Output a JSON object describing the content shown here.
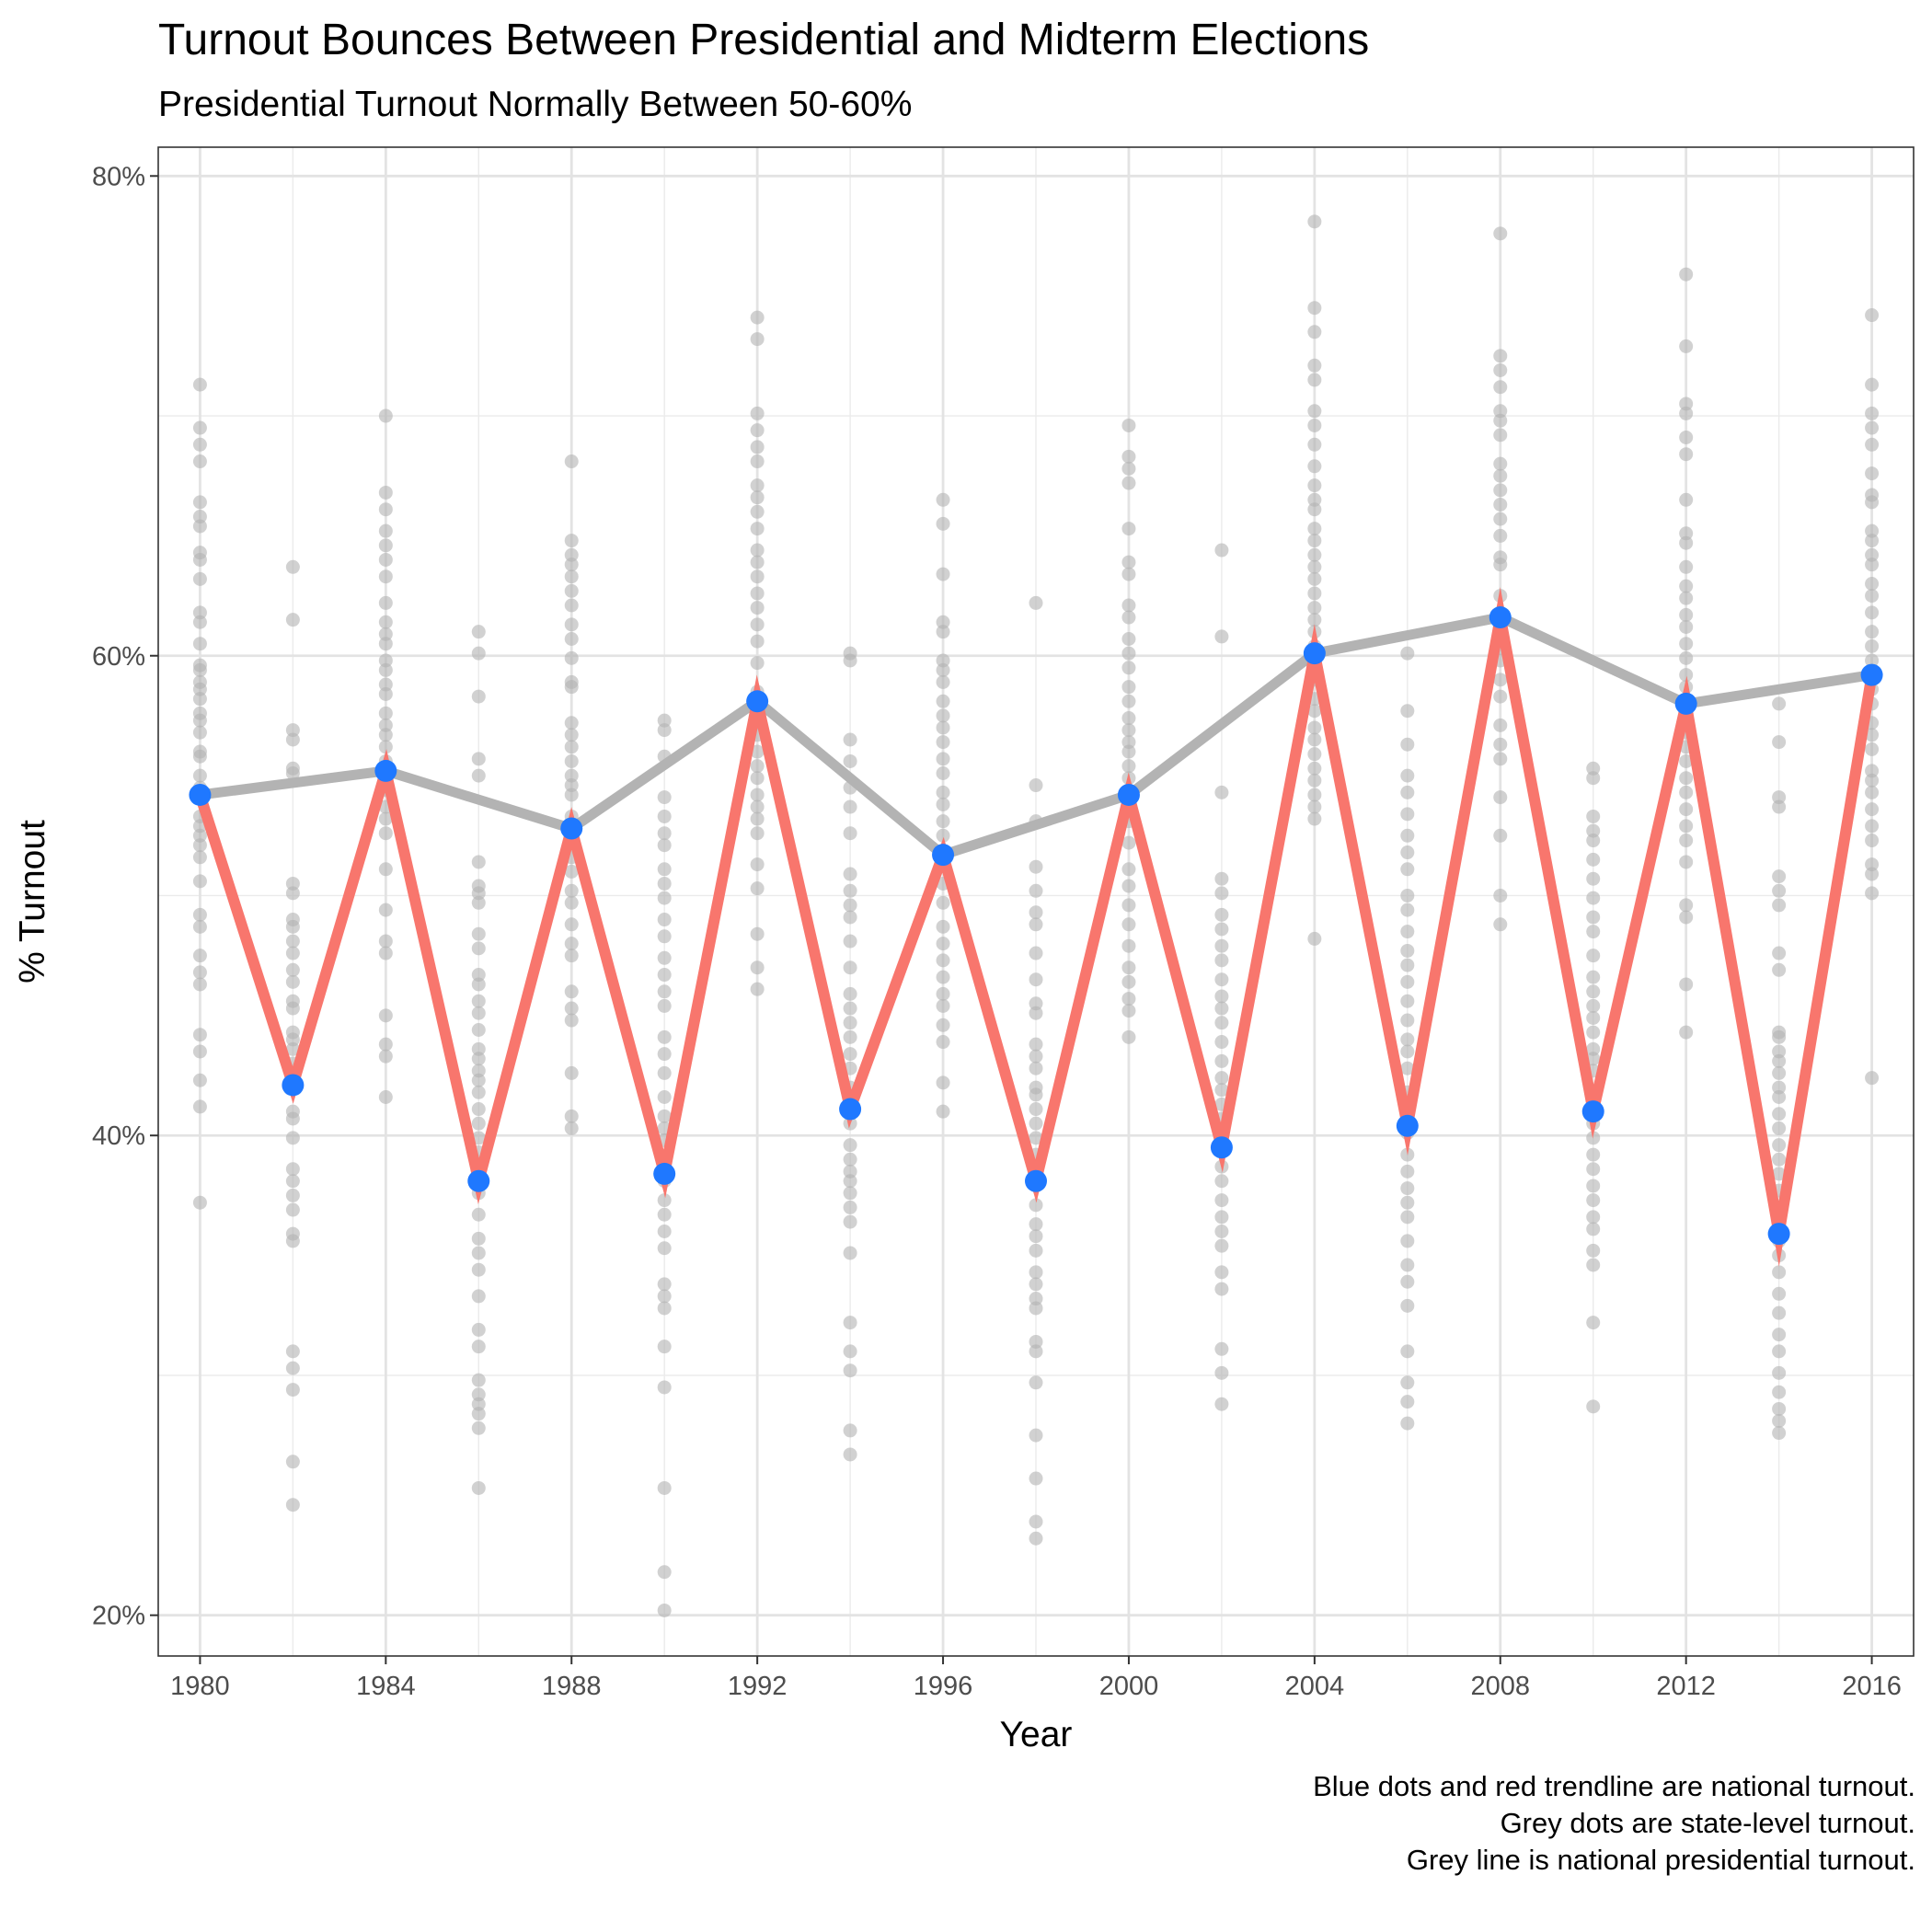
{
  "chart_data": {
    "type": "line",
    "title": "Turnout Bounces Between Presidential and Midterm Elections",
    "subtitle": "Presidential Turnout Normally Between 50-60%",
    "xlabel": "Year",
    "ylabel": "% Turnout",
    "xlim": [
      1979.1,
      2016.9
    ],
    "ylim": [
      18.3,
      81.2
    ],
    "x_ticks": [
      1980,
      1984,
      1988,
      1992,
      1996,
      2000,
      2004,
      2008,
      2012,
      2016
    ],
    "y_ticks": [
      20,
      40,
      60,
      80
    ],
    "y_tick_labels": [
      "20%",
      "40%",
      "60%",
      "80%"
    ],
    "grid": true,
    "caption": [
      "Blue dots and red trendline are national turnout.",
      "Grey dots are state-level turnout.",
      "Grey line is national presidential turnout."
    ],
    "colors": {
      "national_line": "#f8766d",
      "national_points": "#1f78ff",
      "presidential_line": "#b3b3b3",
      "state_points": "#b3b3b3"
    },
    "series": [
      {
        "id": "national",
        "x": [
          1980,
          1982,
          1984,
          1986,
          1988,
          1990,
          1992,
          1994,
          1996,
          1998,
          2000,
          2002,
          2004,
          2006,
          2008,
          2010,
          2012,
          2014,
          2016
        ],
        "values": [
          54.2,
          42.1,
          55.2,
          38.1,
          52.8,
          38.4,
          58.1,
          41.1,
          51.7,
          38.1,
          54.2,
          39.5,
          60.1,
          40.4,
          61.6,
          41.0,
          58.0,
          35.9,
          59.2
        ]
      },
      {
        "id": "presidential",
        "x": [
          1980,
          1984,
          1988,
          1992,
          1996,
          2000,
          2004,
          2008,
          2012,
          2016
        ],
        "values": [
          54.2,
          55.2,
          52.8,
          58.1,
          51.7,
          54.2,
          60.1,
          61.6,
          58.0,
          59.2
        ]
      }
    ],
    "state_points": [
      {
        "x": 1980,
        "values": [
          71.3,
          69.5,
          68.8,
          68.1,
          66.4,
          65.8,
          65.4,
          64.3,
          64.0,
          63.2,
          61.8,
          61.4,
          60.5,
          59.6,
          59.4,
          58.9,
          58.6,
          58.2,
          57.6,
          57.3,
          56.8,
          56.0,
          55.8,
          55.0,
          54.5,
          53.3,
          52.9,
          52.5,
          52.1,
          51.6,
          50.6,
          49.2,
          48.7,
          47.5,
          46.8,
          46.3,
          44.2,
          43.5,
          42.3,
          41.2,
          37.2
        ]
      },
      {
        "x": 1982,
        "values": [
          63.7,
          61.5,
          56.9,
          56.5,
          55.3,
          55.1,
          50.5,
          50.1,
          49.0,
          48.7,
          48.1,
          47.6,
          46.9,
          46.4,
          45.6,
          45.3,
          44.3,
          44.0,
          43.6,
          43.0,
          42.6,
          42.1,
          41.0,
          40.7,
          39.9,
          38.6,
          38.1,
          37.5,
          36.9,
          35.9,
          35.6,
          31.0,
          30.3,
          29.4,
          26.4,
          24.6
        ]
      },
      {
        "x": 1984,
        "values": [
          70.0,
          66.8,
          66.1,
          65.2,
          64.6,
          64.0,
          63.3,
          62.2,
          61.4,
          60.9,
          60.5,
          59.8,
          59.4,
          58.8,
          58.4,
          57.6,
          57.1,
          56.7,
          56.2,
          55.6,
          55.2,
          54.9,
          54.4,
          53.7,
          53.2,
          52.6,
          51.1,
          49.4,
          48.1,
          47.6,
          45.0,
          43.8,
          43.3,
          41.6
        ]
      },
      {
        "x": 1986,
        "values": [
          61.0,
          60.1,
          58.3,
          55.7,
          55.0,
          51.4,
          50.4,
          50.1,
          49.7,
          48.4,
          47.8,
          46.7,
          46.3,
          45.6,
          45.1,
          44.4,
          43.6,
          43.2,
          42.7,
          42.3,
          41.8,
          41.1,
          40.5,
          39.9,
          39.3,
          38.1,
          37.6,
          36.7,
          35.7,
          35.1,
          34.4,
          33.3,
          31.9,
          31.2,
          29.8,
          29.2,
          28.8,
          28.4,
          27.8,
          25.3
        ]
      },
      {
        "x": 1988,
        "values": [
          68.1,
          64.8,
          64.2,
          63.8,
          63.3,
          62.7,
          62.1,
          61.3,
          60.7,
          59.9,
          58.9,
          58.7,
          57.2,
          56.7,
          56.2,
          55.6,
          55.0,
          54.6,
          54.2,
          53.3,
          52.3,
          51.6,
          51.0,
          50.2,
          49.7,
          48.8,
          48.0,
          47.5,
          46.0,
          45.3,
          44.8,
          42.6,
          40.8,
          40.3
        ]
      },
      {
        "x": 1990,
        "values": [
          57.3,
          56.9,
          55.8,
          54.1,
          53.3,
          52.6,
          52.1,
          51.1,
          50.5,
          49.9,
          49.0,
          48.3,
          47.4,
          46.7,
          46.0,
          45.4,
          44.1,
          43.4,
          42.6,
          41.6,
          40.8,
          40.3,
          39.8,
          38.9,
          38.1,
          37.3,
          36.7,
          36.0,
          35.3,
          33.8,
          33.3,
          32.8,
          31.2,
          29.5,
          25.3,
          21.8,
          20.2
        ]
      },
      {
        "x": 1992,
        "values": [
          74.1,
          73.2,
          70.1,
          69.4,
          68.7,
          68.1,
          67.1,
          66.6,
          66.0,
          65.3,
          64.4,
          63.9,
          63.3,
          62.6,
          62.0,
          61.3,
          60.6,
          59.7,
          58.5,
          57.9,
          57.2,
          56.7,
          56.0,
          55.4,
          54.9,
          54.2,
          53.7,
          53.2,
          52.6,
          51.3,
          50.3,
          48.4,
          47.0,
          46.1
        ]
      },
      {
        "x": 1994,
        "values": [
          60.1,
          59.8,
          56.5,
          55.6,
          54.5,
          53.7,
          52.6,
          50.9,
          50.2,
          49.6,
          49.1,
          48.1,
          47.0,
          45.9,
          45.3,
          44.7,
          44.1,
          43.4,
          42.8,
          42.0,
          41.4,
          40.5,
          39.6,
          39.0,
          38.5,
          38.1,
          37.6,
          37.0,
          36.4,
          35.1,
          32.2,
          31.0,
          30.2,
          27.7,
          26.7
        ]
      },
      {
        "x": 1996,
        "values": [
          66.5,
          65.5,
          63.4,
          61.4,
          61.0,
          59.8,
          59.4,
          58.9,
          58.1,
          57.5,
          57.0,
          56.4,
          55.7,
          55.1,
          54.3,
          53.8,
          53.1,
          52.5,
          51.6,
          50.5,
          49.7,
          48.7,
          48.0,
          47.3,
          46.6,
          45.9,
          45.4,
          44.6,
          43.9,
          42.2,
          41.0
        ]
      },
      {
        "x": 1998,
        "values": [
          62.2,
          54.6,
          53.1,
          51.2,
          50.2,
          49.3,
          48.8,
          47.6,
          46.5,
          45.5,
          45.1,
          43.8,
          43.3,
          42.8,
          42.0,
          41.7,
          41.1,
          40.5,
          39.9,
          39.2,
          38.5,
          37.9,
          37.1,
          36.3,
          35.8,
          35.2,
          34.3,
          33.8,
          33.2,
          32.8,
          31.4,
          31.0,
          29.7,
          27.5,
          25.7,
          23.9,
          23.2
        ]
      },
      {
        "x": 2000,
        "values": [
          69.6,
          68.3,
          67.8,
          67.2,
          65.3,
          63.9,
          63.4,
          62.1,
          61.6,
          60.7,
          60.1,
          59.5,
          58.7,
          58.1,
          57.4,
          56.9,
          56.4,
          56.0,
          55.4,
          54.9,
          54.4,
          53.8,
          53.1,
          52.2,
          51.1,
          50.4,
          49.6,
          48.8,
          47.9,
          47.0,
          46.4,
          45.7,
          45.2,
          44.1
        ]
      },
      {
        "x": 2002,
        "values": [
          64.4,
          60.8,
          54.3,
          50.7,
          50.1,
          49.2,
          48.6,
          47.9,
          47.3,
          46.5,
          45.8,
          45.3,
          44.7,
          43.9,
          43.1,
          42.4,
          41.9,
          41.3,
          40.7,
          40.2,
          39.6,
          38.7,
          38.1,
          37.3,
          36.6,
          36.0,
          35.4,
          34.3,
          33.6,
          31.1,
          30.1,
          28.8
        ]
      },
      {
        "x": 2004,
        "values": [
          78.1,
          74.5,
          73.5,
          72.1,
          71.5,
          70.2,
          69.6,
          68.8,
          67.9,
          67.1,
          66.5,
          66.1,
          65.3,
          64.8,
          64.2,
          63.7,
          63.2,
          62.6,
          62.0,
          61.5,
          61.0,
          60.4,
          59.6,
          59.0,
          58.2,
          57.7,
          57.0,
          56.5,
          55.9,
          55.3,
          54.8,
          54.2,
          53.7,
          53.2,
          48.2
        ]
      },
      {
        "x": 2006,
        "values": [
          60.1,
          57.7,
          56.3,
          55.0,
          54.3,
          53.4,
          52.5,
          51.8,
          51.1,
          50.0,
          49.4,
          48.5,
          47.7,
          47.1,
          46.4,
          45.6,
          44.8,
          44.0,
          43.5,
          42.8,
          41.8,
          41.1,
          40.7,
          40.1,
          39.2,
          38.5,
          37.8,
          37.2,
          36.6,
          35.6,
          34.6,
          33.9,
          32.9,
          31.0,
          29.7,
          28.9,
          28.0
        ]
      },
      {
        "x": 2008,
        "values": [
          77.6,
          72.5,
          71.9,
          71.2,
          70.2,
          69.8,
          69.2,
          68.0,
          67.5,
          66.9,
          66.3,
          65.7,
          65.0,
          64.1,
          63.8,
          62.5,
          61.8,
          61.2,
          60.3,
          59.8,
          59.0,
          58.3,
          57.1,
          56.3,
          55.7,
          54.1,
          52.5,
          50.0,
          48.8
        ]
      },
      {
        "x": 2010,
        "values": [
          55.3,
          54.9,
          53.3,
          52.7,
          52.3,
          51.5,
          50.7,
          49.9,
          49.1,
          48.5,
          47.5,
          46.6,
          46.0,
          45.4,
          44.9,
          44.3,
          43.6,
          43.2,
          42.7,
          41.8,
          41.2,
          40.5,
          39.9,
          39.2,
          38.6,
          37.9,
          37.3,
          36.6,
          36.1,
          35.2,
          34.6,
          32.2,
          28.7
        ]
      },
      {
        "x": 2012,
        "values": [
          75.9,
          72.9,
          70.5,
          70.1,
          69.1,
          68.4,
          66.5,
          65.1,
          64.7,
          63.7,
          62.9,
          62.4,
          61.7,
          61.2,
          60.5,
          59.9,
          59.2,
          58.7,
          58.1,
          57.4,
          56.8,
          56.2,
          55.6,
          54.9,
          54.3,
          53.6,
          52.9,
          52.3,
          51.4,
          49.6,
          49.1,
          46.3,
          44.3
        ]
      },
      {
        "x": 2014,
        "values": [
          58.0,
          56.4,
          54.1,
          53.7,
          50.8,
          50.2,
          49.6,
          47.6,
          46.9,
          44.3,
          44.1,
          43.5,
          43.1,
          42.6,
          42.0,
          41.6,
          40.9,
          40.3,
          39.6,
          39.0,
          38.4,
          37.7,
          37.0,
          36.2,
          35.6,
          35.0,
          34.3,
          33.4,
          32.6,
          31.7,
          31.0,
          30.1,
          29.3,
          28.6,
          28.1,
          27.6
        ]
      },
      {
        "x": 2016,
        "values": [
          74.2,
          71.3,
          70.1,
          69.5,
          68.8,
          67.6,
          66.7,
          66.4,
          65.2,
          64.8,
          64.2,
          63.8,
          63.0,
          62.5,
          61.8,
          61.0,
          60.4,
          59.8,
          59.3,
          58.6,
          58.0,
          57.2,
          56.7,
          56.1,
          55.2,
          54.8,
          54.3,
          53.6,
          52.9,
          52.3,
          51.3,
          50.9,
          50.1,
          42.4
        ]
      }
    ]
  }
}
